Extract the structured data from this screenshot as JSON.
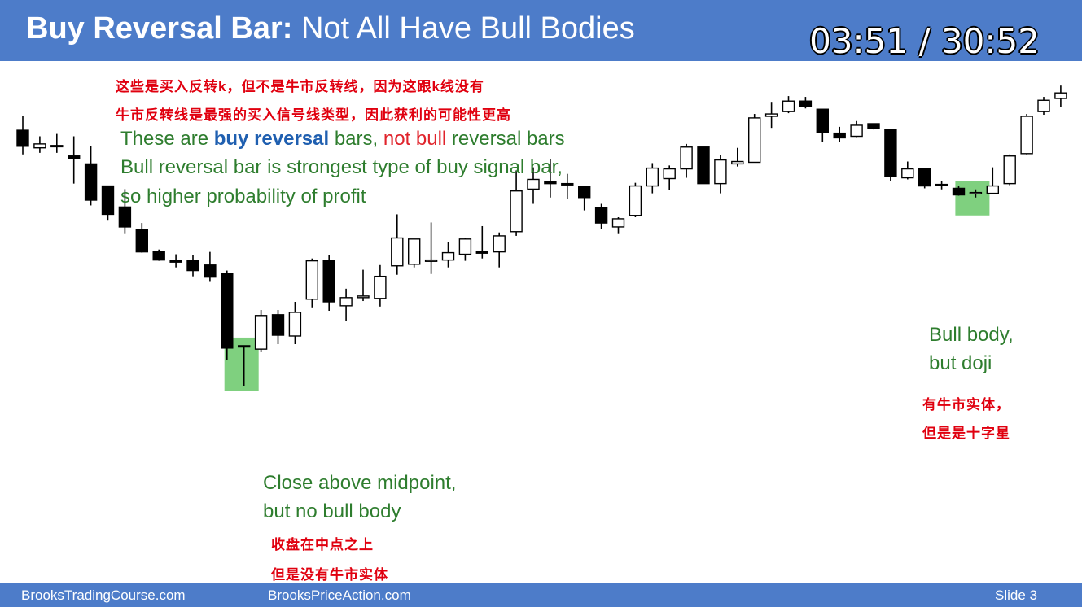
{
  "slide": {
    "title_bold": "Buy Reversal Bar:",
    "title_rest": " Not All Have Bull Bodies",
    "timer": "03:51 / 30:52"
  },
  "notes": {
    "cn_line1": "这些是买入反转k，但不是牛市反转线，因为这跟k线没有",
    "cn_line2": "牛市反转线是最强的买入信号线类型，因此获利的可能性更高",
    "en_line1_a": "These are ",
    "en_line1_b": "buy reversal",
    "en_line1_c": " bars, ",
    "en_line1_d": "not bull",
    "en_line1_e": " reversal bars",
    "en_line2": "Bull reversal bar is strongest type of buy signal bar,",
    "en_line3": "so higher probability of profit"
  },
  "annotations": {
    "left_en_1": "Close above midpoint,",
    "left_en_2": "but no bull body",
    "left_cn_1": "收盘在中点之上",
    "left_cn_2": "但是没有牛市实体",
    "right_en_1": "Bull body,",
    "right_en_2": "but doji",
    "right_cn_1": "有牛市实体，",
    "right_cn_2": "但是是十字星"
  },
  "footer": {
    "left": "BrooksTradingCourse.com",
    "center": "BrooksPriceAction.com",
    "right": "Slide  3"
  },
  "colors": {
    "header": "#4d7cc9",
    "highlight": "#7fd07f",
    "note_red": "#e0000f",
    "note_green": "#2e7d2e"
  },
  "chart_data": {
    "type": "candlestick",
    "note": "price values in arbitrary units (no axis printed); higher = higher price",
    "bars": [
      {
        "o": 81.4,
        "h": 86.7,
        "l": 72.2,
        "c": 75.3
      },
      {
        "o": 74.7,
        "h": 79.1,
        "l": 72.8,
        "c": 76.2
      },
      {
        "o": 75.6,
        "h": 80.0,
        "l": 72.8,
        "c": 75.6
      },
      {
        "o": 71.6,
        "h": 79.1,
        "l": 61.1,
        "c": 70.7
      },
      {
        "o": 68.6,
        "h": 75.3,
        "l": 52.8,
        "c": 54.8
      },
      {
        "o": 60.2,
        "h": 60.2,
        "l": 47.3,
        "c": 49.4
      },
      {
        "o": 52.2,
        "h": 59.0,
        "l": 42.2,
        "c": 44.6
      },
      {
        "o": 43.7,
        "h": 46.1,
        "l": 34.8,
        "c": 35.1
      },
      {
        "o": 35.1,
        "h": 36.0,
        "l": 31.7,
        "c": 32.0
      },
      {
        "o": 31.7,
        "h": 34.2,
        "l": 29.2,
        "c": 31.7
      },
      {
        "o": 31.7,
        "h": 33.9,
        "l": 25.8,
        "c": 28.0
      },
      {
        "o": 30.1,
        "h": 35.1,
        "l": 24.0,
        "c": 25.5
      },
      {
        "o": 27.0,
        "h": 28.0,
        "l": -5.9,
        "c": -1.5
      },
      {
        "o": -0.6,
        "h": -0.6,
        "l": -16.1,
        "c": -0.6
      },
      {
        "o": -1.9,
        "h": 13.0,
        "l": -2.8,
        "c": 10.9
      },
      {
        "o": 11.2,
        "h": 13.0,
        "l": 0.0,
        "c": 3.4
      },
      {
        "o": 3.1,
        "h": 16.1,
        "l": 0.0,
        "c": 12.1
      },
      {
        "o": 17.1,
        "h": 32.6,
        "l": 14.0,
        "c": 31.7
      },
      {
        "o": 31.7,
        "h": 33.9,
        "l": 12.7,
        "c": 16.1
      },
      {
        "o": 14.6,
        "h": 21.1,
        "l": 8.7,
        "c": 17.7
      },
      {
        "o": 17.7,
        "h": 28.3,
        "l": 16.4,
        "c": 18.3
      },
      {
        "o": 17.4,
        "h": 30.1,
        "l": 14.3,
        "c": 25.8
      },
      {
        "o": 29.8,
        "h": 49.4,
        "l": 26.4,
        "c": 40.4
      },
      {
        "o": 30.4,
        "h": 40.0,
        "l": 29.2,
        "c": 40.0
      },
      {
        "o": 31.7,
        "h": 46.3,
        "l": 26.7,
        "c": 32.0
      },
      {
        "o": 32.0,
        "h": 38.8,
        "l": 29.2,
        "c": 34.8
      },
      {
        "o": 34.2,
        "h": 40.4,
        "l": 31.7,
        "c": 40.0
      },
      {
        "o": 35.1,
        "h": 44.9,
        "l": 32.6,
        "c": 35.1
      },
      {
        "o": 35.1,
        "h": 42.5,
        "l": 29.2,
        "c": 41.2
      },
      {
        "o": 42.8,
        "h": 66.1,
        "l": 41.2,
        "c": 58.3
      },
      {
        "o": 59.0,
        "h": 67.3,
        "l": 53.4,
        "c": 62.7
      },
      {
        "o": 61.7,
        "h": 70.4,
        "l": 55.8,
        "c": 61.1
      },
      {
        "o": 61.1,
        "h": 64.8,
        "l": 55.2,
        "c": 61.1
      },
      {
        "o": 59.9,
        "h": 59.9,
        "l": 50.9,
        "c": 55.8
      },
      {
        "o": 51.9,
        "h": 53.4,
        "l": 43.7,
        "c": 46.1
      },
      {
        "o": 44.6,
        "h": 48.3,
        "l": 42.2,
        "c": 47.7
      },
      {
        "o": 49.0,
        "h": 61.4,
        "l": 48.3,
        "c": 60.2
      },
      {
        "o": 60.2,
        "h": 68.9,
        "l": 57.4,
        "c": 67.0
      },
      {
        "o": 63.0,
        "h": 68.0,
        "l": 58.6,
        "c": 66.7
      },
      {
        "o": 66.7,
        "h": 76.2,
        "l": 63.3,
        "c": 75.0
      },
      {
        "o": 75.0,
        "h": 75.0,
        "l": 61.1,
        "c": 61.1
      },
      {
        "o": 61.1,
        "h": 71.9,
        "l": 57.4,
        "c": 70.1
      },
      {
        "o": 68.6,
        "h": 74.7,
        "l": 67.6,
        "c": 69.5
      },
      {
        "o": 69.2,
        "h": 87.6,
        "l": 69.2,
        "c": 86.1
      },
      {
        "o": 86.7,
        "h": 92.2,
        "l": 82.3,
        "c": 87.6
      },
      {
        "o": 88.5,
        "h": 94.4,
        "l": 87.9,
        "c": 92.5
      },
      {
        "o": 92.5,
        "h": 94.1,
        "l": 89.7,
        "c": 90.4
      },
      {
        "o": 89.4,
        "h": 89.4,
        "l": 76.9,
        "c": 80.6
      },
      {
        "o": 80.3,
        "h": 82.7,
        "l": 76.9,
        "c": 78.5
      },
      {
        "o": 79.1,
        "h": 84.9,
        "l": 78.8,
        "c": 83.3
      },
      {
        "o": 83.9,
        "h": 83.9,
        "l": 81.7,
        "c": 82.0
      },
      {
        "o": 81.7,
        "h": 81.7,
        "l": 62.0,
        "c": 63.9
      },
      {
        "o": 63.3,
        "h": 69.5,
        "l": 62.7,
        "c": 66.7
      },
      {
        "o": 66.7,
        "h": 66.7,
        "l": 59.3,
        "c": 60.2
      },
      {
        "o": 60.8,
        "h": 62.0,
        "l": 58.9,
        "c": 60.8
      },
      {
        "o": 59.3,
        "h": 60.2,
        "l": 56.5,
        "c": 56.8
      },
      {
        "o": 57.4,
        "h": 58.9,
        "l": 55.8,
        "c": 57.7
      },
      {
        "o": 57.4,
        "h": 67.3,
        "l": 57.4,
        "c": 60.2
      },
      {
        "o": 61.1,
        "h": 72.2,
        "l": 60.5,
        "c": 71.6
      },
      {
        "o": 72.5,
        "h": 87.6,
        "l": 72.2,
        "c": 86.7
      },
      {
        "o": 88.5,
        "h": 94.1,
        "l": 87.3,
        "c": 92.8
      },
      {
        "o": 93.5,
        "h": 98.4,
        "l": 90.4,
        "c": 95.6
      }
    ],
    "highlights": [
      {
        "label": "buy reversal bar, close above midpoint",
        "bar_index": 13
      },
      {
        "label": "bull body, but doji",
        "bar_index": 56
      }
    ]
  }
}
